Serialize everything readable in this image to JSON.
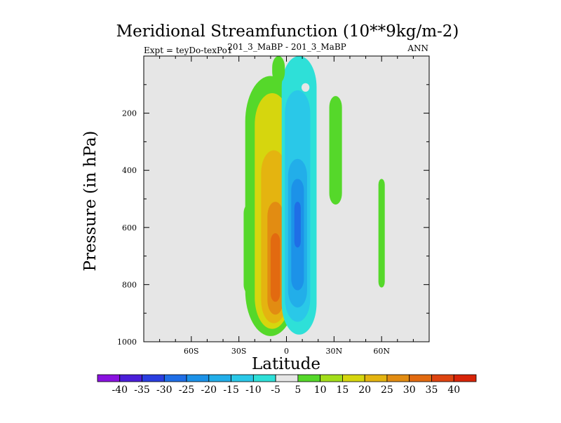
{
  "chart_data": {
    "type": "contour",
    "title": "Meridional Streamfunction (10**9kg/m-2)",
    "subtitle_left": "Expt = teyDo-texPo1",
    "subtitle_center": "201_3_MaBP - 201_3_MaBP",
    "subtitle_right": "ANN",
    "xlabel": "Latitude",
    "ylabel": "Pressure (in hPa)",
    "xlim": [
      -90,
      90
    ],
    "ylim": [
      0,
      1000
    ],
    "y_inverted": true,
    "x_ticks": [
      {
        "value": -60,
        "label": "60S"
      },
      {
        "value": -30,
        "label": "30S"
      },
      {
        "value": 0,
        "label": "0"
      },
      {
        "value": 30,
        "label": "30N"
      },
      {
        "value": 60,
        "label": "60N"
      }
    ],
    "y_ticks": [
      {
        "value": 200,
        "label": "200"
      },
      {
        "value": 400,
        "label": "400"
      },
      {
        "value": 600,
        "label": "600"
      },
      {
        "value": 800,
        "label": "800"
      },
      {
        "value": 1000,
        "label": "1000"
      }
    ],
    "background_color": "#e6e6e6",
    "levels": [
      -40,
      -35,
      -30,
      -25,
      -20,
      -15,
      -10,
      -5,
      5,
      10,
      15,
      20,
      25,
      30,
      35,
      40
    ],
    "level_labels": [
      "-40",
      "-35",
      "-30",
      "-25",
      "-20",
      "-15",
      "-10",
      "-5",
      "5",
      "10",
      "15",
      "20",
      "25",
      "30",
      "35",
      "40"
    ],
    "colors": [
      "#8a12e0",
      "#4b1ed9",
      "#2a3ee0",
      "#1f6ee6",
      "#1c92e8",
      "#22aee9",
      "#2ac8e8",
      "#2ee0d8",
      "#e6e6e6",
      "#55d82a",
      "#a3de1a",
      "#d6d60e",
      "#e4b410",
      "#e28c12",
      "#e26a10",
      "#de4410",
      "#d82408"
    ],
    "regions": [
      {
        "name": "sh-green-cell",
        "value": 7,
        "lat_center": -10,
        "lat_halfwidth": 16,
        "p_top": 70,
        "p_bottom": 980
      },
      {
        "name": "sh-yellow-core",
        "value": 17,
        "lat_center": -9,
        "lat_halfwidth": 11,
        "p_top": 130,
        "p_bottom": 955
      },
      {
        "name": "sh-gold-core",
        "value": 22,
        "lat_center": -8,
        "lat_halfwidth": 8,
        "p_top": 330,
        "p_bottom": 935
      },
      {
        "name": "sh-orange-core",
        "value": 27,
        "lat_center": -7,
        "lat_halfwidth": 5,
        "p_top": 510,
        "p_bottom": 905
      },
      {
        "name": "sh-red-core",
        "value": 32,
        "lat_center": -7,
        "lat_halfwidth": 3,
        "p_top": 620,
        "p_bottom": 860
      },
      {
        "name": "nh-cyan-cell",
        "value": -7,
        "lat_center": 8,
        "lat_halfwidth": 11,
        "p_top": 0,
        "p_bottom": 975
      },
      {
        "name": "nh-lightblue-core",
        "value": -12,
        "lat_center": 7,
        "lat_halfwidth": 8,
        "p_top": 120,
        "p_bottom": 930
      },
      {
        "name": "nh-blue-core",
        "value": -17,
        "lat_center": 7,
        "lat_halfwidth": 6,
        "p_top": 360,
        "p_bottom": 880
      },
      {
        "name": "nh-darkblue-core",
        "value": -22,
        "lat_center": 7,
        "lat_halfwidth": 4,
        "p_top": 430,
        "p_bottom": 820
      },
      {
        "name": "nh-deepblue-core",
        "value": -27,
        "lat_center": 7,
        "lat_halfwidth": 2,
        "p_top": 510,
        "p_bottom": 670
      },
      {
        "name": "tropical-green-upper",
        "value": 7,
        "lat_center": -5,
        "lat_halfwidth": 4,
        "p_top": 0,
        "p_bottom": 95
      },
      {
        "name": "nh-subtropical-green",
        "value": 7,
        "lat_center": 31,
        "lat_halfwidth": 4,
        "p_top": 140,
        "p_bottom": 520
      },
      {
        "name": "sh-lower-green",
        "value": 7,
        "lat_center": -24,
        "lat_halfwidth": 3,
        "p_top": 520,
        "p_bottom": 830
      },
      {
        "name": "nh-midlat-green",
        "value": 7,
        "lat_center": 60,
        "lat_halfwidth": 2,
        "p_top": 430,
        "p_bottom": 810
      },
      {
        "name": "nh-upper-gray-hole",
        "value": 0,
        "lat_center": 12,
        "lat_halfwidth": 2.5,
        "p_top": 95,
        "p_bottom": 125
      }
    ]
  }
}
